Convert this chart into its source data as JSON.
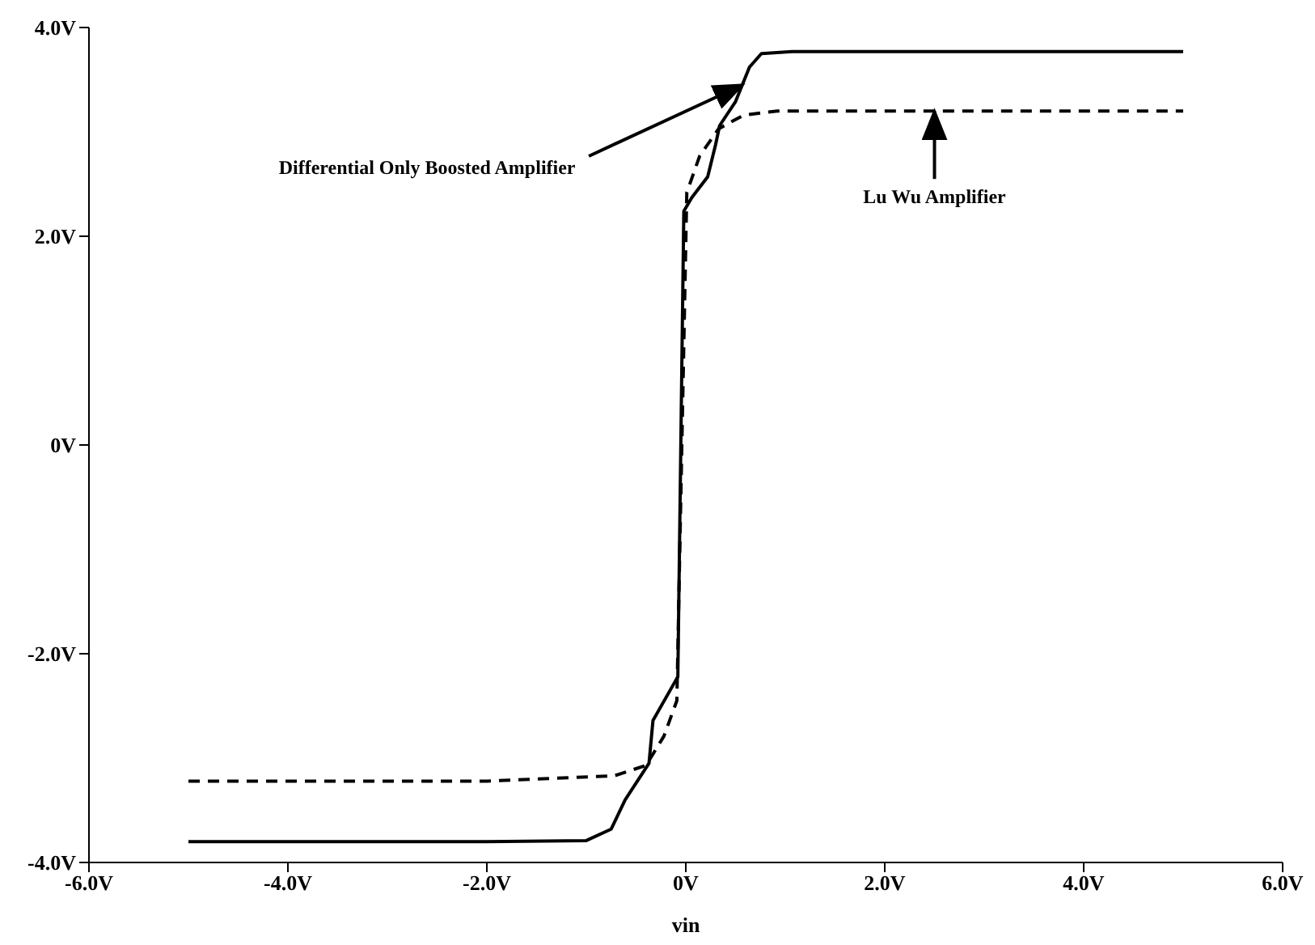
{
  "chart_data": {
    "type": "line",
    "xlabel": "vin",
    "xlim": [
      -6,
      6
    ],
    "ylim": [
      -4,
      4
    ],
    "xticks": [
      {
        "value": -6,
        "label": "-6.0V"
      },
      {
        "value": -4,
        "label": "-4.0V"
      },
      {
        "value": -2,
        "label": "-2.0V"
      },
      {
        "value": 0,
        "label": "0V"
      },
      {
        "value": 2,
        "label": "2.0V"
      },
      {
        "value": 4,
        "label": "4.0V"
      },
      {
        "value": 6,
        "label": "6.0V"
      }
    ],
    "yticks": [
      {
        "value": -4,
        "label": "-4.0V"
      },
      {
        "value": -2,
        "label": "-2.0V"
      },
      {
        "value": 0,
        "label": "0V"
      },
      {
        "value": 2,
        "label": "2.0V"
      },
      {
        "value": 4,
        "label": "4.0V"
      }
    ],
    "grid": false,
    "legend": false,
    "marker": "none",
    "series": [
      {
        "color": "#000000",
        "line_style": "solid",
        "x": [
          -5,
          -2,
          -1,
          -0.75,
          -0.61,
          -0.37,
          -0.33,
          -0.08,
          -0.02,
          0.06,
          0.22,
          0.3,
          0.34,
          0.5,
          0.64,
          0.76,
          1.07,
          3,
          5
        ],
        "values": [
          -3.8,
          -3.8,
          -3.79,
          -3.68,
          -3.4,
          -3.05,
          -2.64,
          -2.22,
          2.24,
          2.37,
          2.57,
          2.88,
          3.06,
          3.29,
          3.62,
          3.75,
          3.77,
          3.77,
          3.77
        ]
      },
      {
        "color": "#000000",
        "line_style": "dashed",
        "x": [
          -5,
          -2,
          -0.72,
          -0.4,
          -0.22,
          -0.09,
          0.01,
          0.14,
          0.33,
          0.58,
          0.92,
          3,
          5
        ],
        "values": [
          -3.22,
          -3.22,
          -3.17,
          -3.07,
          -2.79,
          -2.45,
          2.42,
          2.77,
          3.03,
          3.16,
          3.2,
          3.2,
          3.2
        ]
      }
    ],
    "annotations": [
      {
        "text": "Differential Only Boosted Amplifier",
        "x": 0.57,
        "y": 3.45
      },
      {
        "text": "Lu Wu Amplifier",
        "x": 2.5,
        "y": 3.2
      }
    ]
  }
}
